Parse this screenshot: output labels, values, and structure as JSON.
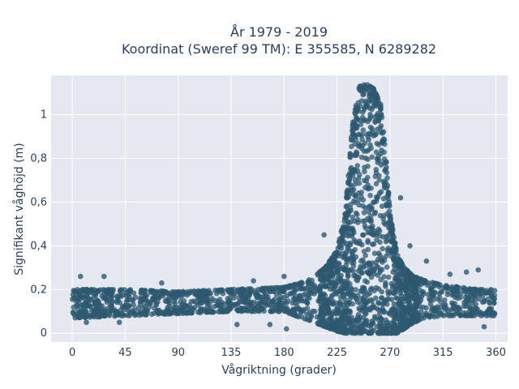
{
  "chart_data": {
    "type": "scatter",
    "title_lines": [
      "År 1979 - 2019",
      "Koordinat (Sweref 99 TM): E 355585, N 6289282"
    ],
    "xlabel": "Vågriktning (grader)",
    "ylabel": "Signifikant våghöjd (m)",
    "xlim": [
      -18,
      370
    ],
    "ylim": [
      -0.04,
      1.18
    ],
    "xticks": [
      0,
      45,
      90,
      135,
      180,
      225,
      270,
      315,
      360
    ],
    "xtick_labels": [
      "0",
      "45",
      "90",
      "135",
      "180",
      "225",
      "270",
      "315",
      "360"
    ],
    "yticks": [
      0,
      0.2,
      0.4,
      0.6,
      0.8,
      1
    ],
    "ytick_labels": [
      "0",
      "0,2",
      "0,4",
      "0,6",
      "0,8",
      "1"
    ],
    "grid": true,
    "marker_color": "#2e5870",
    "plot_bg": "#e5e8f0",
    "envelope": {
      "x": [
        0,
        45,
        90,
        135,
        180,
        200,
        215,
        225,
        232,
        238,
        244,
        250,
        256,
        262,
        266,
        270,
        276,
        282,
        290,
        300,
        315,
        330,
        345,
        360
      ],
      "upper": [
        0.2,
        0.2,
        0.19,
        0.2,
        0.21,
        0.24,
        0.3,
        0.38,
        0.55,
        0.95,
        1.13,
        1.14,
        1.12,
        1.05,
        0.85,
        0.55,
        0.36,
        0.3,
        0.26,
        0.24,
        0.22,
        0.21,
        0.2,
        0.2
      ],
      "lower": [
        0.07,
        0.08,
        0.09,
        0.1,
        0.1,
        0.06,
        0.03,
        0.01,
        0,
        0,
        0,
        0,
        0,
        0,
        0,
        0,
        0,
        0.02,
        0.05,
        0.07,
        0.08,
        0.08,
        0.08,
        0.08
      ]
    },
    "outliers": [
      {
        "x": 7,
        "y": 0.26
      },
      {
        "x": 27,
        "y": 0.26
      },
      {
        "x": 76,
        "y": 0.23
      },
      {
        "x": 154,
        "y": 0.24
      },
      {
        "x": 180,
        "y": 0.26
      },
      {
        "x": 335,
        "y": 0.28
      },
      {
        "x": 345,
        "y": 0.29
      },
      {
        "x": 321,
        "y": 0.27
      },
      {
        "x": 301,
        "y": 0.33
      },
      {
        "x": 287,
        "y": 0.4
      },
      {
        "x": 279,
        "y": 0.62
      },
      {
        "x": 214,
        "y": 0.45
      },
      {
        "x": 12,
        "y": 0.05
      },
      {
        "x": 40,
        "y": 0.05
      },
      {
        "x": 140,
        "y": 0.04
      },
      {
        "x": 168,
        "y": 0.04
      },
      {
        "x": 182,
        "y": 0.02
      },
      {
        "x": 350,
        "y": 0.03
      }
    ]
  }
}
